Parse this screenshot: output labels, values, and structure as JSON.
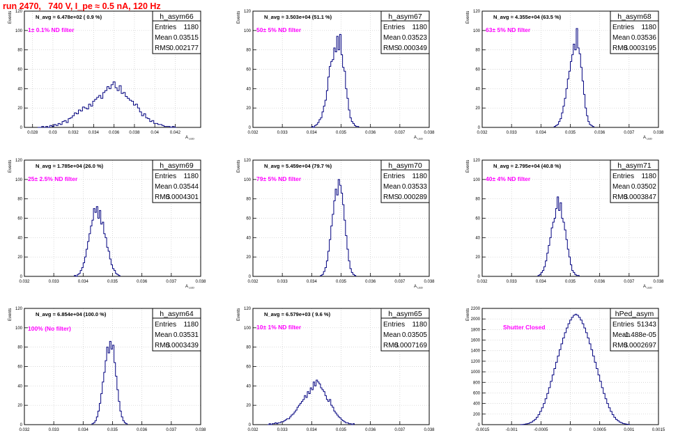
{
  "header": {
    "title": "run 2470,   740 V, I_pe ≈ 0.5 nA, 120 Hz"
  },
  "style": {
    "line_color": "#00007f",
    "annotation_color": "#ff00ff",
    "title_color": "#ff0000",
    "grid_color": "#c8c8c8"
  },
  "chart_data": [
    {
      "type": "histogram",
      "name": "h_asym66",
      "ylabel": "Events",
      "xlabel": "A_LED",
      "ylim": [
        0,
        120
      ],
      "yticks": [
        0,
        20,
        40,
        60,
        80,
        100,
        120
      ],
      "xlim": [
        0.0272,
        0.0445
      ],
      "xticks": [
        "0.028",
        "0.03",
        "0.032",
        "0.034",
        "0.036",
        "0.038",
        "0.04",
        "0.042"
      ],
      "xtick_values": [
        0.028,
        0.03,
        0.032,
        0.034,
        0.036,
        0.038,
        0.04,
        0.042
      ],
      "navg": "N_avg = 6.478e+02 ( 0.9 %)",
      "annotation": "1± 0.1% ND filter",
      "stats": {
        "entries": "1180",
        "mean": "0.03515",
        "rms": "0.002177"
      },
      "bins": {
        "start": 0.0285,
        "width": 0.0002,
        "values": [
          0,
          0,
          1,
          0,
          1,
          0,
          2,
          1,
          3,
          2,
          4,
          3,
          6,
          7,
          5,
          9,
          10,
          12,
          15,
          14,
          18,
          17,
          21,
          20,
          19,
          24,
          22,
          27,
          29,
          31,
          33,
          30,
          36,
          38,
          42,
          40,
          44,
          47,
          41,
          38,
          43,
          35,
          36,
          32,
          30,
          28,
          27,
          23,
          24,
          20,
          16,
          12,
          14,
          10,
          9,
          6,
          7,
          4,
          4,
          3,
          3,
          2,
          1,
          1,
          1,
          0,
          1,
          0
        ]
      }
    },
    {
      "type": "histogram",
      "name": "h_asym67",
      "ylabel": "Events",
      "xlabel": "A_LED",
      "ylim": [
        0,
        120
      ],
      "yticks": [
        0,
        20,
        40,
        60,
        80,
        100,
        120
      ],
      "xlim": [
        0.032,
        0.038
      ],
      "xticks": [
        "0.032",
        "0.033",
        "0.034",
        "0.035",
        "0.036",
        "0.037",
        "0.038"
      ],
      "xtick_values": [
        0.032,
        0.033,
        0.034,
        0.035,
        0.036,
        0.037,
        0.038
      ],
      "navg": "N_avg = 3.503e+04 (51.1 %)",
      "annotation": "50± 5% ND filter",
      "stats": {
        "entries": "1180",
        "mean": "0.03523",
        "rms": "0.000349"
      },
      "bins": {
        "start": 0.034,
        "width": 5e-05,
        "values": [
          1,
          0,
          2,
          3,
          5,
          8,
          10,
          16,
          22,
          28,
          38,
          52,
          63,
          68,
          70,
          82,
          78,
          94,
          80,
          96,
          75,
          62,
          58,
          40,
          30,
          18,
          10,
          6,
          4,
          2,
          1,
          1
        ]
      }
    },
    {
      "type": "histogram",
      "name": "h_asym68",
      "ylabel": "Events",
      "xlabel": "A_LED",
      "ylim": [
        0,
        120
      ],
      "yticks": [
        0,
        20,
        40,
        60,
        80,
        100,
        120
      ],
      "xlim": [
        0.032,
        0.038
      ],
      "xticks": [
        "0.032",
        "0.033",
        "0.034",
        "0.035",
        "0.036",
        "0.037",
        "0.038"
      ],
      "xtick_values": [
        0.032,
        0.033,
        0.034,
        0.035,
        0.036,
        0.037,
        0.038
      ],
      "navg": "N_avg = 4.355e+04 (63.5 %)",
      "annotation": "63± 5% ND filter",
      "stats": {
        "entries": "1180",
        "mean": "0.03536",
        "rms": "0.0003195"
      },
      "bins": {
        "start": 0.03445,
        "width": 5e-05,
        "values": [
          1,
          2,
          3,
          6,
          9,
          15,
          22,
          30,
          40,
          50,
          58,
          68,
          75,
          86,
          80,
          102,
          82,
          76,
          62,
          48,
          34,
          20,
          12,
          6,
          3,
          2,
          1
        ]
      }
    },
    {
      "type": "histogram",
      "name": "h_asym69",
      "ylabel": "Events",
      "xlabel": "A_LED",
      "ylim": [
        0,
        120
      ],
      "yticks": [
        0,
        20,
        40,
        60,
        80,
        100,
        120
      ],
      "xlim": [
        0.032,
        0.038
      ],
      "xticks": [
        "0.032",
        "0.033",
        "0.034",
        "0.035",
        "0.036",
        "0.037",
        "0.038"
      ],
      "xtick_values": [
        0.032,
        0.033,
        0.034,
        0.035,
        0.036,
        0.037,
        0.038
      ],
      "navg": "N_avg = 1.785e+04 (26.0 %)",
      "annotation": "25± 2.5% ND filter",
      "stats": {
        "entries": "1180",
        "mean": "0.03544",
        "rms": "0.0004301"
      },
      "bins": {
        "start": 0.0337,
        "width": 5e-05,
        "values": [
          1,
          0,
          2,
          3,
          6,
          9,
          14,
          20,
          28,
          36,
          44,
          52,
          58,
          70,
          66,
          72,
          60,
          68,
          54,
          56,
          44,
          40,
          30,
          26,
          18,
          12,
          8,
          6,
          3,
          2,
          1
        ]
      }
    },
    {
      "type": "histogram",
      "name": "h_asym70",
      "ylabel": "Events",
      "xlabel": "A_LED",
      "ylim": [
        0,
        120
      ],
      "yticks": [
        0,
        20,
        40,
        60,
        80,
        100,
        120
      ],
      "xlim": [
        0.032,
        0.038
      ],
      "xticks": [
        "0.032",
        "0.033",
        "0.034",
        "0.035",
        "0.036",
        "0.037",
        "0.038"
      ],
      "xtick_values": [
        0.032,
        0.033,
        0.034,
        0.035,
        0.036,
        0.037,
        0.038
      ],
      "navg": "N_avg = 5.459e+04 (79.7 %)",
      "annotation": "79± 5% ND filter",
      "stats": {
        "entries": "1180",
        "mean": "0.03533",
        "rms": "0.000289"
      },
      "bins": {
        "start": 0.0343,
        "width": 5e-05,
        "values": [
          1,
          2,
          5,
          9,
          16,
          26,
          38,
          52,
          64,
          78,
          90,
          84,
          100,
          94,
          86,
          74,
          58,
          42,
          28,
          16,
          8,
          4,
          2,
          1
        ]
      }
    },
    {
      "type": "histogram",
      "name": "h_asym71",
      "ylabel": "Events",
      "xlabel": "A_LED",
      "ylim": [
        0,
        120
      ],
      "yticks": [
        0,
        20,
        40,
        60,
        80,
        100,
        120
      ],
      "xlim": [
        0.032,
        0.038
      ],
      "xticks": [
        "0.032",
        "0.033",
        "0.034",
        "0.035",
        "0.036",
        "0.037",
        "0.038"
      ],
      "xtick_values": [
        0.032,
        0.033,
        0.034,
        0.035,
        0.036,
        0.037,
        0.038
      ],
      "navg": "N_avg = 2.795e+04 (40.8 %)",
      "annotation": "40± 4% ND filter",
      "stats": {
        "entries": "1180",
        "mean": "0.03502",
        "rms": "0.0003847"
      },
      "bins": {
        "start": 0.0339,
        "width": 5e-05,
        "values": [
          1,
          2,
          4,
          6,
          10,
          16,
          24,
          32,
          40,
          50,
          56,
          60,
          70,
          82,
          68,
          76,
          60,
          56,
          48,
          38,
          28,
          20,
          12,
          6,
          4,
          2,
          1,
          1
        ]
      }
    },
    {
      "type": "histogram",
      "name": "h_asym64",
      "ylabel": "Events",
      "xlabel": "A_LED",
      "ylim": [
        0,
        120
      ],
      "yticks": [
        0,
        20,
        40,
        60,
        80,
        100,
        120
      ],
      "xlim": [
        0.032,
        0.038
      ],
      "xticks": [
        "0.032",
        "0.033",
        "0.034",
        "0.035",
        "0.036",
        "0.037",
        "0.038"
      ],
      "xtick_values": [
        0.032,
        0.033,
        0.034,
        0.035,
        0.036,
        0.037,
        0.038
      ],
      "navg": "N_avg = 6.854e+04 (100.0 %)",
      "annotation": "100% (No filter)",
      "stats": {
        "entries": "1180",
        "mean": "0.03531",
        "rms": "0.0003439"
      },
      "bins": {
        "start": 0.0343,
        "width": 5e-05,
        "values": [
          1,
          2,
          4,
          8,
          14,
          22,
          32,
          44,
          54,
          66,
          80,
          74,
          86,
          78,
          82,
          64,
          50,
          36,
          24,
          14,
          8,
          4,
          2,
          1
        ]
      }
    },
    {
      "type": "histogram",
      "name": "h_asym65",
      "ylabel": "Events",
      "xlabel": "A_LED",
      "ylim": [
        0,
        120
      ],
      "yticks": [
        0,
        20,
        40,
        60,
        80,
        100,
        120
      ],
      "xlim": [
        0.032,
        0.038
      ],
      "xticks": [
        "0.032",
        "0.033",
        "0.034",
        "0.035",
        "0.036",
        "0.037",
        "0.038"
      ],
      "xtick_values": [
        0.032,
        0.033,
        0.034,
        0.035,
        0.036,
        0.037,
        0.038
      ],
      "navg": "N_avg = 6.579e+03 ( 9.6 %)",
      "annotation": "10± 1% ND filter",
      "stats": {
        "entries": "1180",
        "mean": "0.03505",
        "rms": "0.0007169"
      },
      "bins": {
        "start": 0.0325,
        "width": 5e-05,
        "values": [
          0,
          1,
          0,
          1,
          1,
          2,
          1,
          2,
          2,
          3,
          3,
          4,
          5,
          6,
          6,
          8,
          10,
          11,
          13,
          15,
          18,
          20,
          22,
          24,
          26,
          30,
          28,
          34,
          32,
          38,
          36,
          44,
          40,
          46,
          44,
          42,
          38,
          36,
          34,
          30,
          26,
          24,
          26,
          20,
          18,
          14,
          12,
          10,
          8,
          7,
          5,
          4,
          3,
          2,
          2,
          1,
          1,
          0,
          1
        ]
      }
    },
    {
      "type": "histogram",
      "name": "hPed_asym",
      "ylabel": "Events",
      "xlabel": "A_LED",
      "ylim": [
        0,
        2200
      ],
      "yticks": [
        0,
        200,
        400,
        600,
        800,
        1000,
        1200,
        1400,
        1600,
        1800,
        2000,
        2200
      ],
      "xlim": [
        -0.0015,
        0.0015
      ],
      "xticks": [
        "-0.0015",
        "-0.001",
        "-0.0005",
        "0",
        "0.0005",
        "0.001",
        "0.0015"
      ],
      "xtick_values": [
        -0.0015,
        -0.001,
        -0.0005,
        0,
        0.0005,
        0.001,
        0.0015
      ],
      "navg": "",
      "annotation": "Shutter Closed",
      "stats": {
        "entries": "51343",
        "mean": "-1.488e-05",
        "rms": "0.0002697"
      },
      "bins": {
        "start": -0.00085,
        "width": 3e-05,
        "values": [
          2,
          4,
          8,
          14,
          22,
          34,
          50,
          72,
          100,
          140,
          190,
          250,
          320,
          400,
          490,
          590,
          700,
          820,
          940,
          1060,
          1180,
          1300,
          1420,
          1530,
          1640,
          1740,
          1830,
          1910,
          1980,
          2030,
          2070,
          2090,
          2070,
          2030,
          1980,
          1910,
          1830,
          1740,
          1640,
          1530,
          1420,
          1300,
          1180,
          1060,
          940,
          820,
          700,
          590,
          490,
          400,
          320,
          250,
          190,
          140,
          100,
          72,
          50,
          34,
          22,
          14,
          8,
          4
        ]
      }
    }
  ]
}
